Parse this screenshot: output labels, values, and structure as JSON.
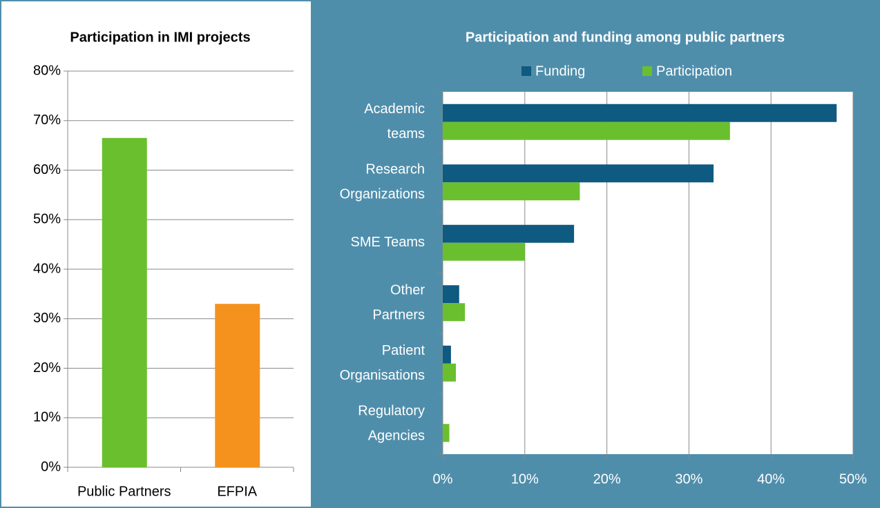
{
  "chart_data": [
    {
      "type": "bar",
      "title": "Participation in IMI projects",
      "categories": [
        "Public Partners",
        "EFPIA"
      ],
      "values": [
        66.5,
        33
      ],
      "colors": [
        "#6abf2e",
        "#f5921e"
      ],
      "ylim": [
        0,
        80
      ],
      "yticks": [
        {
          "value": 0,
          "label": "0%"
        },
        {
          "value": 10,
          "label": "10%"
        },
        {
          "value": 20,
          "label": "20%"
        },
        {
          "value": 30,
          "label": "30%"
        },
        {
          "value": 40,
          "label": "40%"
        },
        {
          "value": 50,
          "label": "50%"
        },
        {
          "value": 60,
          "label": "60%"
        },
        {
          "value": 70,
          "label": "70%"
        },
        {
          "value": 80,
          "label": "80%"
        }
      ],
      "grid": true
    },
    {
      "type": "barh",
      "title": "Participation and funding among public partners",
      "categories": [
        [
          "Academic",
          "teams"
        ],
        [
          "Research",
          "Organizations"
        ],
        [
          "SME Teams"
        ],
        [
          "Other",
          "Partners"
        ],
        [
          "Patient",
          "Organisations"
        ],
        [
          "Regulatory",
          "Agencies"
        ]
      ],
      "series": [
        {
          "name": "Funding",
          "color": "#0e5a80",
          "values": [
            48,
            33,
            16,
            2,
            1,
            0
          ]
        },
        {
          "name": "Participation",
          "color": "#6abf2e",
          "values": [
            35,
            16.7,
            10,
            2.7,
            1.6,
            0.8
          ]
        }
      ],
      "xlim": [
        0,
        50
      ],
      "xticks": [
        {
          "value": 0,
          "label": "0%"
        },
        {
          "value": 10,
          "label": "10%"
        },
        {
          "value": 20,
          "label": "20%"
        },
        {
          "value": 30,
          "label": "30%"
        },
        {
          "value": 40,
          "label": "40%"
        },
        {
          "value": 50,
          "label": "50%"
        }
      ],
      "grid": true,
      "legend": "top"
    }
  ]
}
